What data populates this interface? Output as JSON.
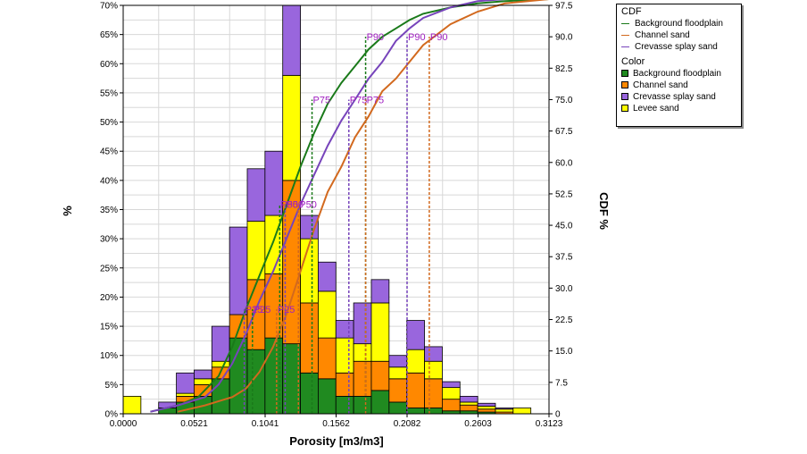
{
  "chart_data": {
    "type": "bar",
    "stacked": true,
    "xlabel": "Porosity [m3/m3]",
    "ylabel": "%",
    "y2label": "CDF %",
    "x_range": [
      0,
      0.3123
    ],
    "y_range": [
      0,
      70
    ],
    "y2_range": [
      0,
      97.5
    ],
    "x_ticks": [
      "0.0000",
      "0.0521",
      "0.1041",
      "0.1562",
      "0.2082",
      "0.2603",
      "0.3123"
    ],
    "y_ticks": [
      "0%",
      "5%",
      "10%",
      "15%",
      "20%",
      "25%",
      "30%",
      "35%",
      "40%",
      "45%",
      "50%",
      "55%",
      "60%",
      "65%",
      "70%"
    ],
    "y2_ticks": [
      "0",
      "7.5",
      "15.0",
      "22.5",
      "30.0",
      "37.5",
      "45.0",
      "52.5",
      "60.0",
      "67.5",
      "75.0",
      "82.5",
      "90.0",
      "97.5"
    ],
    "grid": true,
    "bin_width": 0.013,
    "bin_starts": [
      0.0,
      0.013,
      0.026,
      0.039,
      0.052,
      0.065,
      0.078,
      0.091,
      0.104,
      0.117,
      0.13,
      0.143,
      0.156,
      0.169,
      0.182,
      0.195,
      0.208,
      0.221,
      0.234,
      0.247,
      0.26,
      0.273,
      0.286
    ],
    "color_legend_title": "Color",
    "series": [
      {
        "name": "Background floodplain",
        "color": "#208a20",
        "values": [
          0,
          0,
          1,
          2,
          3,
          6,
          13,
          11,
          13,
          12,
          7,
          6,
          3,
          3,
          4,
          2,
          1,
          1,
          0.5,
          0.5,
          0.3,
          0,
          0
        ]
      },
      {
        "name": "Channel sand",
        "color": "#ff8800",
        "values": [
          0,
          0,
          0,
          1,
          2,
          2,
          4,
          12,
          11,
          28,
          12,
          7,
          4,
          6,
          5,
          4,
          6,
          5,
          2,
          1,
          0.5,
          0.3,
          0
        ]
      },
      {
        "name": "Levee sand",
        "color": "#ffff00",
        "values": [
          3,
          0,
          0,
          0.5,
          1,
          1,
          0,
          10,
          10,
          18,
          11,
          8,
          6,
          3,
          10,
          2,
          4,
          3,
          2,
          0.5,
          0.5,
          0.5,
          1
        ]
      },
      {
        "name": "Crevasse splay sand",
        "color": "#9966dd",
        "values": [
          0,
          0,
          1,
          3.5,
          1.5,
          6,
          15,
          9,
          11,
          12,
          4,
          5,
          3,
          7,
          4,
          2,
          5,
          2.5,
          1,
          1,
          0.5,
          0.2,
          0
        ]
      }
    ],
    "cdf_legend_title": "CDF",
    "cdf": [
      {
        "name": "Background floodplain",
        "color": "#1a7a1a",
        "x": [
          0.02,
          0.04,
          0.055,
          0.07,
          0.08,
          0.09,
          0.1,
          0.11,
          0.12,
          0.13,
          0.14,
          0.15,
          0.16,
          0.17,
          0.18,
          0.19,
          0.2,
          0.21,
          0.22,
          0.24,
          0.26,
          0.28,
          0.3123
        ],
        "y": [
          0.5,
          2,
          4,
          9,
          16,
          25,
          33,
          41,
          50,
          59,
          67,
          74,
          79,
          83,
          87,
          90,
          92,
          94,
          95.5,
          97,
          98,
          98.5,
          99
        ]
      },
      {
        "name": "Channel sand",
        "color": "#d2691e",
        "x": [
          0.04,
          0.06,
          0.08,
          0.09,
          0.1,
          0.11,
          0.12,
          0.13,
          0.14,
          0.15,
          0.16,
          0.17,
          0.18,
          0.19,
          0.2,
          0.21,
          0.22,
          0.24,
          0.26,
          0.28,
          0.3123
        ],
        "y": [
          0.5,
          2,
          4,
          6,
          10,
          16,
          24,
          34,
          44,
          53,
          59,
          66,
          71,
          77,
          80,
          84,
          88,
          93,
          96,
          98,
          99
        ]
      },
      {
        "name": "Crevasse splay sand",
        "color": "#7744bb",
        "x": [
          0.02,
          0.04,
          0.06,
          0.07,
          0.08,
          0.09,
          0.1,
          0.11,
          0.12,
          0.13,
          0.14,
          0.15,
          0.16,
          0.17,
          0.18,
          0.19,
          0.2,
          0.21,
          0.22,
          0.24,
          0.26,
          0.28,
          0.3123
        ],
        "y": [
          0.5,
          2,
          4,
          7,
          12,
          19,
          27,
          34,
          42,
          50,
          57,
          64,
          70,
          75,
          80,
          84,
          89,
          92,
          94.5,
          97,
          98.5,
          99,
          99
        ]
      }
    ],
    "percentile_markers": [
      {
        "series": "Background floodplain",
        "labels": [
          "P25",
          "P50",
          "P75",
          "P90"
        ],
        "x": [
          0.0948,
          0.1148,
          0.1385,
          0.1778
        ]
      },
      {
        "series": "Crevasse splay sand",
        "labels": [
          "P25",
          "P50",
          "P75",
          "P90"
        ],
        "x": [
          0.0888,
          0.1188,
          0.1655,
          0.2082
        ]
      },
      {
        "series": "Channel sand",
        "labels": [
          "P25",
          "P50",
          "P75",
          "P90"
        ],
        "x": [
          0.1125,
          0.1285,
          0.1778,
          0.2245
        ]
      }
    ]
  }
}
